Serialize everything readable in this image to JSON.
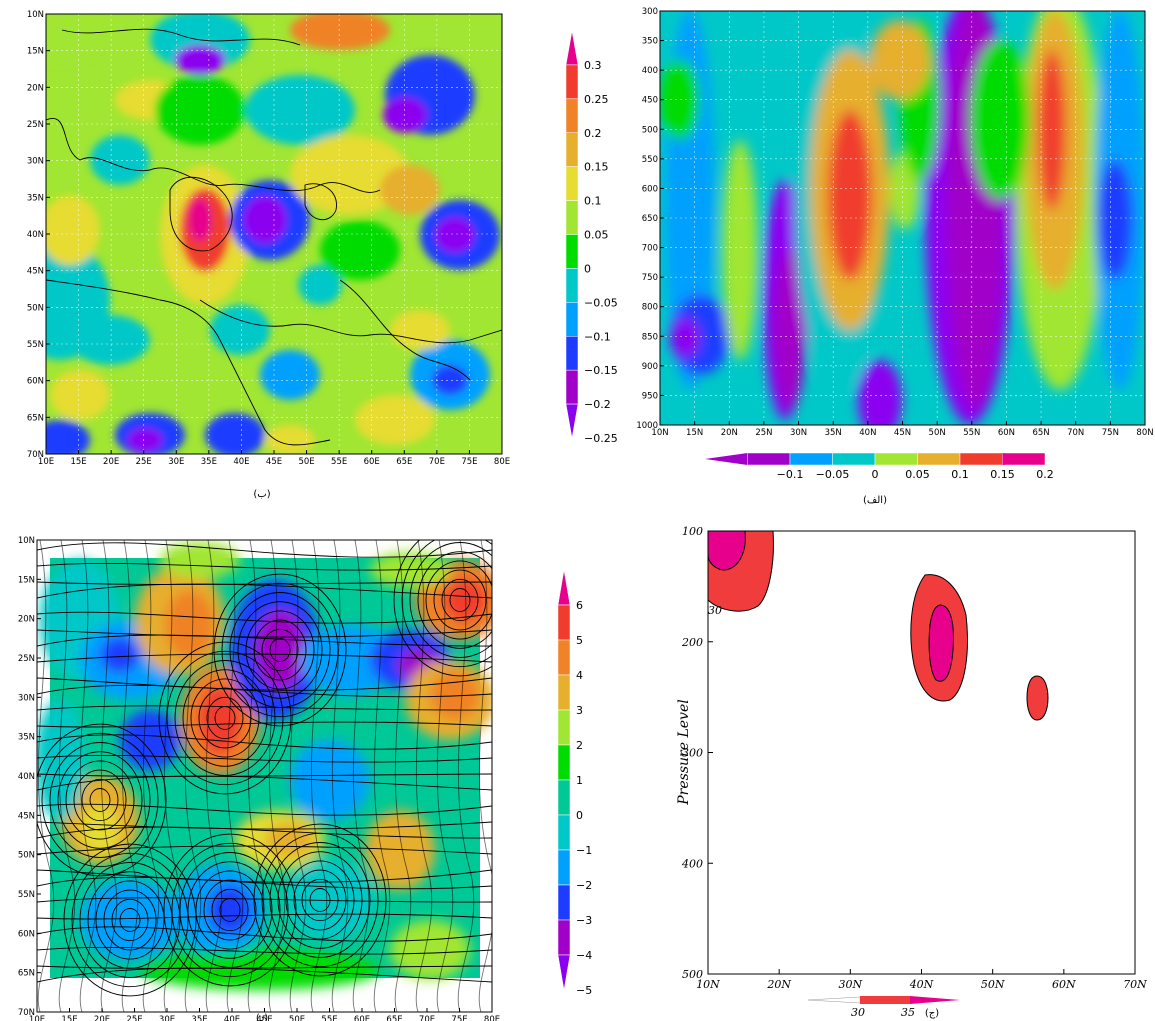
{
  "chart_data": [
    {
      "id": "b",
      "type": "heatmap",
      "caption": "(ب)",
      "x_ticks": [
        "10E",
        "15E",
        "20E",
        "25E",
        "30E",
        "35E",
        "40E",
        "45E",
        "50E",
        "55E",
        "60E",
        "65E",
        "70E",
        "75E",
        "80E"
      ],
      "y_ticks": [
        "10N",
        "15N",
        "20N",
        "25N",
        "30N",
        "35N",
        "40N",
        "45N",
        "50N",
        "55N",
        "60N",
        "65N",
        "70N"
      ],
      "colorbar": [
        "0.3",
        "0.25",
        "0.2",
        "0.15",
        "0.1",
        "0.05",
        "0",
        "−0.05",
        "−0.1",
        "−0.15",
        "−0.2",
        "−0.25"
      ],
      "colors": [
        "#e6008c",
        "#f03c2d",
        "#f08228",
        "#e6af2d",
        "#e6dc32",
        "#a0e632",
        "#00dc00",
        "#00c8c8",
        "#00a0ff",
        "#1e3cff",
        "#a000c8",
        "#8c00f0"
      ]
    },
    {
      "id": "alef",
      "type": "heatmap",
      "caption": "(الف)",
      "x_ticks": [
        "10N",
        "15N",
        "20N",
        "25N",
        "30N",
        "35N",
        "40N",
        "45N",
        "50N",
        "55N",
        "60N",
        "65N",
        "70N",
        "75N",
        "80N"
      ],
      "y_ticks": [
        "300",
        "350",
        "400",
        "450",
        "500",
        "550",
        "600",
        "650",
        "700",
        "750",
        "800",
        "850",
        "900",
        "950",
        "1000"
      ],
      "colorbar": [
        "−0.1",
        "−0.05",
        "0",
        "0.05",
        "0.1",
        "0.15",
        "0.2"
      ],
      "colors": [
        "#a000c8",
        "#00a0ff",
        "#00c8c8",
        "#a0e632",
        "#e6af2d",
        "#f03c2d",
        "#e6008c"
      ]
    },
    {
      "id": "dal",
      "type": "heatmap",
      "caption": "(د)",
      "x_ticks": [
        "10E",
        "15E",
        "20E",
        "25E",
        "30E",
        "35E",
        "40E",
        "45E",
        "50E",
        "55E",
        "60E",
        "65E",
        "70E",
        "75E",
        "80E"
      ],
      "y_ticks": [
        "10N",
        "15N",
        "20N",
        "25N",
        "30N",
        "35N",
        "40N",
        "45N",
        "50N",
        "55N",
        "60N",
        "65N",
        "70N"
      ],
      "colorbar": [
        "6",
        "5",
        "4",
        "3",
        "2",
        "1",
        "0",
        "−1",
        "−2",
        "−3",
        "−4",
        "−5"
      ]
    },
    {
      "id": "jim",
      "type": "heatmap",
      "caption": "(ج)",
      "ylabel": "Pressure Level",
      "x_ticks": [
        "10N",
        "20N",
        "30N",
        "40N",
        "50N",
        "60N",
        "70N"
      ],
      "y_ticks": [
        "100",
        "200",
        "300",
        "400",
        "500"
      ],
      "contour_label": "30",
      "colorbar": [
        "30",
        "35"
      ]
    }
  ]
}
